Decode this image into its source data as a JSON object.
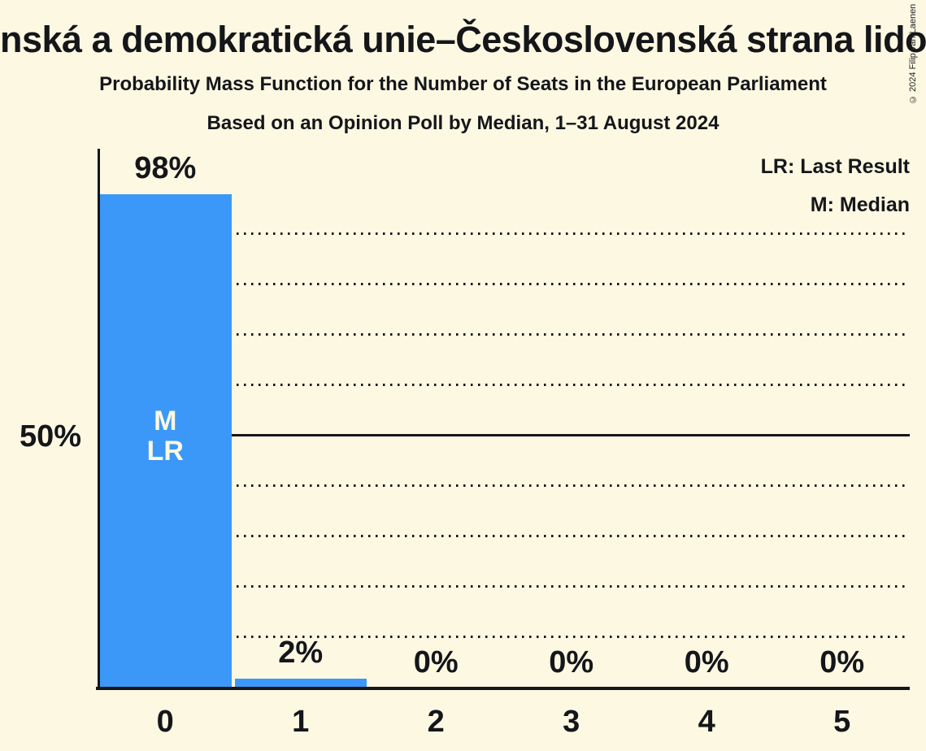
{
  "header": {
    "title": "nská a demokratická unie–Československá strana lidová",
    "subtitle": "Probability Mass Function for the Number of Seats in the European Parliament",
    "poll_line": "Based on an Opinion Poll by Median, 1–31 August 2024"
  },
  "copyright": "© 2024 Filip van Laenen",
  "legend": {
    "last_result": "LR: Last Result",
    "median": "M: Median"
  },
  "y_axis": {
    "tick_label": "50%",
    "tick_value": 50
  },
  "colors": {
    "background": "#FDF8E2",
    "bar": "#3B98F8",
    "text": "#14161A",
    "bar_annotation_text": "#FDF8E2"
  },
  "chart_data": {
    "type": "bar",
    "title": "Probability Mass Function for the Number of Seats in the European Parliament",
    "subtitle": "Based on an Opinion Poll by Median, 1–31 August 2024",
    "categories": [
      "0",
      "1",
      "2",
      "3",
      "4",
      "5"
    ],
    "values": [
      98,
      2,
      0,
      0,
      0,
      0
    ],
    "value_labels": [
      "98%",
      "2%",
      "0%",
      "0%",
      "0%",
      "0%"
    ],
    "xlabel": "",
    "ylabel": "",
    "ylim": [
      0,
      107
    ],
    "grid": "horizontal-dotted",
    "dotted_gridlines_pct": [
      10,
      20,
      30,
      40,
      60,
      70,
      80,
      90
    ],
    "solid_gridline_pct": 50,
    "legend_position": "top-right",
    "median_category": "0",
    "last_result_category": "0",
    "bar_annotation": {
      "category_index": 0,
      "lines": [
        "M",
        "LR"
      ]
    }
  }
}
